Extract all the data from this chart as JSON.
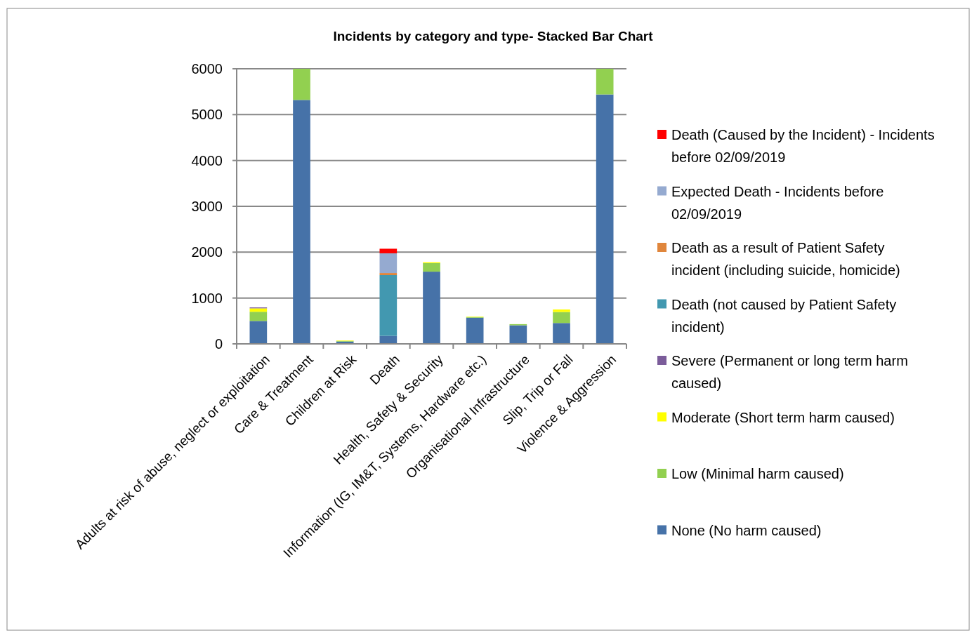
{
  "chart_data": {
    "type": "bar",
    "title": "Incidents by category and type- Stacked Bar Chart",
    "stacked": true,
    "categories": [
      "Adults at risk of abuse, neglect or exploitation",
      "Care & Treatment",
      "Children at Risk",
      "Death",
      "Health, Safety & Security",
      "Information (IG, IM&T, Systems, Hardware etc.)",
      "Organisational Infrastructure",
      "Slip, Trip or Fall",
      "Violence & Aggression"
    ],
    "series": [
      {
        "name": "None (No harm caused)",
        "color": "#4672a8",
        "values": [
          500,
          5320,
          50,
          175,
          1575,
          570,
          405,
          455,
          5440
        ]
      },
      {
        "name": "Low (Minimal harm caused)",
        "color": "#92d050",
        "values": [
          200,
          680,
          15,
          null,
          185,
          15,
          25,
          240,
          560
        ]
      },
      {
        "name": "Moderate (Short term harm caused)",
        "color": "#ffff00",
        "values": [
          75,
          null,
          10,
          null,
          20,
          10,
          null,
          55,
          null
        ]
      },
      {
        "name": "Severe (Permanent or long term harm caused)",
        "color": "#7b5c9a",
        "values": [
          20,
          null,
          null,
          null,
          null,
          null,
          null,
          null,
          null
        ]
      },
      {
        "name": "Death (not caused by Patient Safety incident)",
        "color": "#4298b0",
        "values": [
          null,
          null,
          null,
          1325,
          null,
          null,
          null,
          null,
          null
        ]
      },
      {
        "name": "Death as a result of Patient Safety incident (including suicide, homicide)",
        "color": "#e0863c",
        "values": [
          null,
          null,
          null,
          45,
          null,
          null,
          null,
          null,
          null
        ]
      },
      {
        "name": "Expected Death - Incidents before 02/09/2019",
        "color": "#95aad0",
        "values": [
          null,
          null,
          null,
          430,
          null,
          null,
          null,
          null,
          null
        ]
      },
      {
        "name": "Death (Caused by the Incident) - Incidents before 02/09/2019",
        "color": "#ff0000",
        "values": [
          null,
          null,
          null,
          100,
          null,
          null,
          null,
          null,
          null
        ]
      }
    ],
    "ylim": [
      0,
      6000
    ],
    "yticks": [
      0,
      1000,
      2000,
      3000,
      4000,
      5000,
      6000
    ],
    "grid": "y",
    "legend": "right"
  }
}
